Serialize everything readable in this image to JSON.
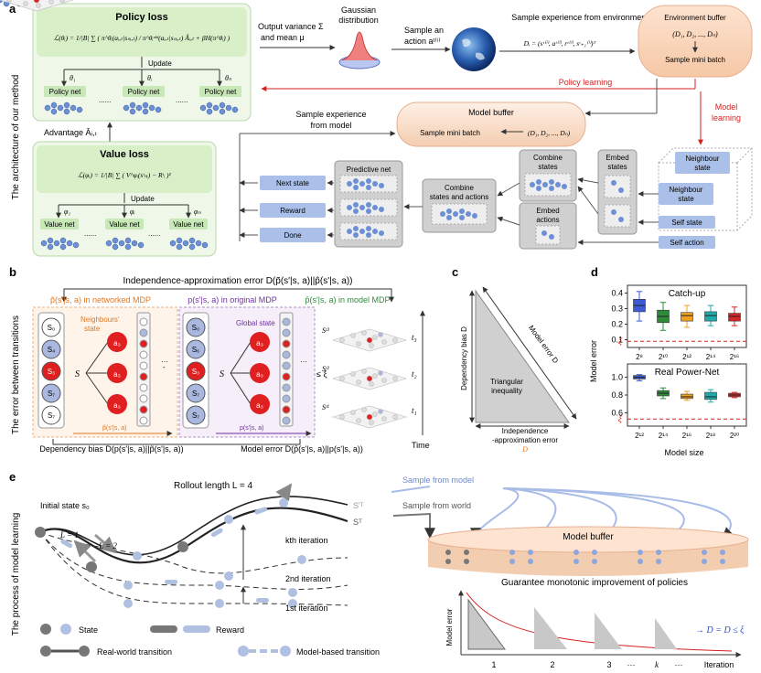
{
  "panel_a": {
    "letter": "a",
    "side_label": "The architecture of our method",
    "policy_loss": {
      "title": "Policy loss",
      "formula": "ℒ(θᵢ) = 1/|B| ∑ ( π^θᵢ(aᵢ,ₜ|sₙᵢ,ₜ) / π^θᵢᵒˡᵈ(aᵢ,ₜ|sₙᵢ,ₜ) Âᵢ,ₜ + βH(π^θᵢ) )",
      "update": "Update",
      "thetas": [
        "θ₁",
        "θᵢ",
        "θₙ"
      ],
      "net_label": "Policy net",
      "dots": "......"
    },
    "advantage": "Advantage Âᵢ,ₜ",
    "value_loss": {
      "title": "Value loss",
      "formula": "ℒ(φᵢ) = 1/|B| ∑ ( V^φᵢ(sᵗₙᵢ) − Rᵗᵢ )²",
      "update": "Update",
      "phis": [
        "φ₁",
        "φᵢ",
        "φₙ"
      ],
      "net_label": "Value net",
      "dots": "......"
    },
    "output_variance": "Output variance Σ",
    "mean": "and mean μ",
    "gaussian": [
      "Gaussian",
      "distribution"
    ],
    "sample_action": [
      "Sample an",
      "action aᵗ⁽ⁱ⁾"
    ],
    "sample_env": "Sample experience from environment",
    "env_formula": "Dᵢ = (sᵗ⁽ⁱ⁾, aᵗ⁽ⁱ⁾, rᵗ⁽ⁱ⁾, sᵗ₊₁⁽ⁱ⁾)ᵀ",
    "env_buffer": {
      "title": "Environment buffer",
      "set": "(D₁, D₂, ..., Dₙ)",
      "sample": "Sample mini batch"
    },
    "policy_learning": "Policy learning",
    "model_learning": [
      "Model",
      "learning"
    ],
    "model_buffer": {
      "title": "Model buffer",
      "sample": "Sample mini batch",
      "set": "(D₁, D₂, ..., Dₙ)"
    },
    "sample_model": [
      "Sample experience",
      "from model"
    ],
    "predictive_net": "Predictive net",
    "outputs": [
      "Next state",
      "Reward",
      "Done"
    ],
    "combine_sa": [
      "Combine",
      "states and actions"
    ],
    "combine_states": [
      "Combine",
      "states"
    ],
    "embed_states": [
      "Embed",
      "states"
    ],
    "embed_actions": [
      "Embed",
      "actions"
    ],
    "neighbour_state_1": [
      "Neighbour",
      "state"
    ],
    "neighbour_state_2": [
      "Neighbour",
      "state"
    ],
    "self_state": "Self state",
    "self_action": "Self action"
  },
  "panel_b": {
    "letter": "b",
    "side_label": "The error between transitions",
    "top_label": "Independence-approximation error D(p̃(s'|s, a)||p̂(s'|s, a))",
    "networked": "p̃(s'|s, a) in networked MDP",
    "original": "p(s'|s, a) in original MDP",
    "model": "p̂(s'|s, a) in model MDP",
    "neighbours_state": [
      "Neighbours'",
      "state"
    ],
    "global_state": "Global state",
    "s_label": "S",
    "a_label": "a₃",
    "left_states": [
      "S₀",
      "S₄",
      "S₃",
      "S₇",
      "S₇"
    ],
    "mid_states": [
      "S₀",
      "S₆",
      "S₃",
      "S₇",
      "S₇"
    ],
    "small_p_tilde": "p̃(s'|s, a)",
    "small_p": "p(s'|s, a)",
    "leq_xi": "≤ ξ",
    "graph_states": [
      "Sᵗ³",
      "Sᵗ²",
      "Sᵗ¹"
    ],
    "times": [
      "t₃",
      "t₂",
      "t₁"
    ],
    "time": "Time",
    "dependency_bias": "Dependency bias D(p(s'|s, a)||p̃(s'|s, a))",
    "model_error": "Model error D(p̂(s'|s, a)||p(s'|s, a))"
  },
  "panel_c": {
    "letter": "c",
    "dependency_bias": "Dependency bias D",
    "model_error": "Model error D",
    "triangular": [
      "Triangular",
      "inequality"
    ],
    "indep_err": [
      "Independence",
      "-approximation error",
      "D"
    ]
  },
  "panel_d": {
    "letter": "d",
    "ylabel": "Model error",
    "xlabel": "Model size",
    "xi": "ξ",
    "colors": [
      "#3b5bd6",
      "#2e8b3a",
      "#f0a020",
      "#22aaaa",
      "#d62728"
    ],
    "top_chart": {
      "title": "Catch-up",
      "yticks": [
        "0.4",
        "0.3",
        "0.2",
        "0.1"
      ],
      "xticks": [
        "2⁸",
        "2¹⁰",
        "2¹²",
        "2¹⁴",
        "2¹⁶"
      ],
      "ymin": 0.05,
      "ymax": 0.45,
      "xi_value": 0.09,
      "boxes": [
        {
          "q1": 0.28,
          "median": 0.32,
          "q3": 0.36,
          "lo": 0.22,
          "hi": 0.41
        },
        {
          "q1": 0.21,
          "median": 0.25,
          "q3": 0.29,
          "lo": 0.16,
          "hi": 0.34
        },
        {
          "q1": 0.22,
          "median": 0.255,
          "q3": 0.275,
          "lo": 0.18,
          "hi": 0.32
        },
        {
          "q1": 0.22,
          "median": 0.255,
          "q3": 0.28,
          "lo": 0.19,
          "hi": 0.32
        },
        {
          "q1": 0.22,
          "median": 0.25,
          "q3": 0.27,
          "lo": 0.19,
          "hi": 0.31
        }
      ]
    },
    "bottom_chart": {
      "title": "Real Power-Net",
      "yticks": [
        "1.0",
        "0.8",
        "0.6"
      ],
      "xticks": [
        "2¹²",
        "2¹⁴",
        "2¹⁶",
        "2¹⁸",
        "2²⁰"
      ],
      "ymin": 0.45,
      "ymax": 1.15,
      "xi_value": 0.53,
      "boxes": [
        {
          "q1": 0.98,
          "median": 1.0,
          "q3": 1.02,
          "lo": 0.96,
          "hi": 1.03
        },
        {
          "q1": 0.79,
          "median": 0.82,
          "q3": 0.85,
          "lo": 0.76,
          "hi": 0.88
        },
        {
          "q1": 0.76,
          "median": 0.78,
          "q3": 0.81,
          "lo": 0.74,
          "hi": 0.84
        },
        {
          "q1": 0.75,
          "median": 0.78,
          "q3": 0.83,
          "lo": 0.72,
          "hi": 0.86
        },
        {
          "q1": 0.78,
          "median": 0.8,
          "q3": 0.82,
          "lo": 0.77,
          "hi": 0.83
        }
      ]
    }
  },
  "panel_e": {
    "letter": "e",
    "side_label": "The process of model learning",
    "rollout": "Rollout length L = 4",
    "initial": "Initial state s₀",
    "l1": "L = 1",
    "l2": "L = 2",
    "st_prime": "S'ᵀ",
    "st": "Sᵀ",
    "iterations": [
      "kth iteration",
      "2nd iteration",
      "1st iteration"
    ],
    "sample_model": "Sample from model",
    "sample_world": "Sample from world",
    "model_buffer": "Model buffer",
    "guarantee": "Guarantee monotonic improvement of policies",
    "ylabel": "Model error",
    "xticks": [
      "1",
      "2",
      "3",
      "···",
      "k",
      "···"
    ],
    "xlabel": "Iteration",
    "result": "→ D = D ≤ ξ",
    "legend": {
      "state": "State",
      "reward": "Reward",
      "real": "Real-world transition",
      "model": "Model-based transition"
    }
  }
}
